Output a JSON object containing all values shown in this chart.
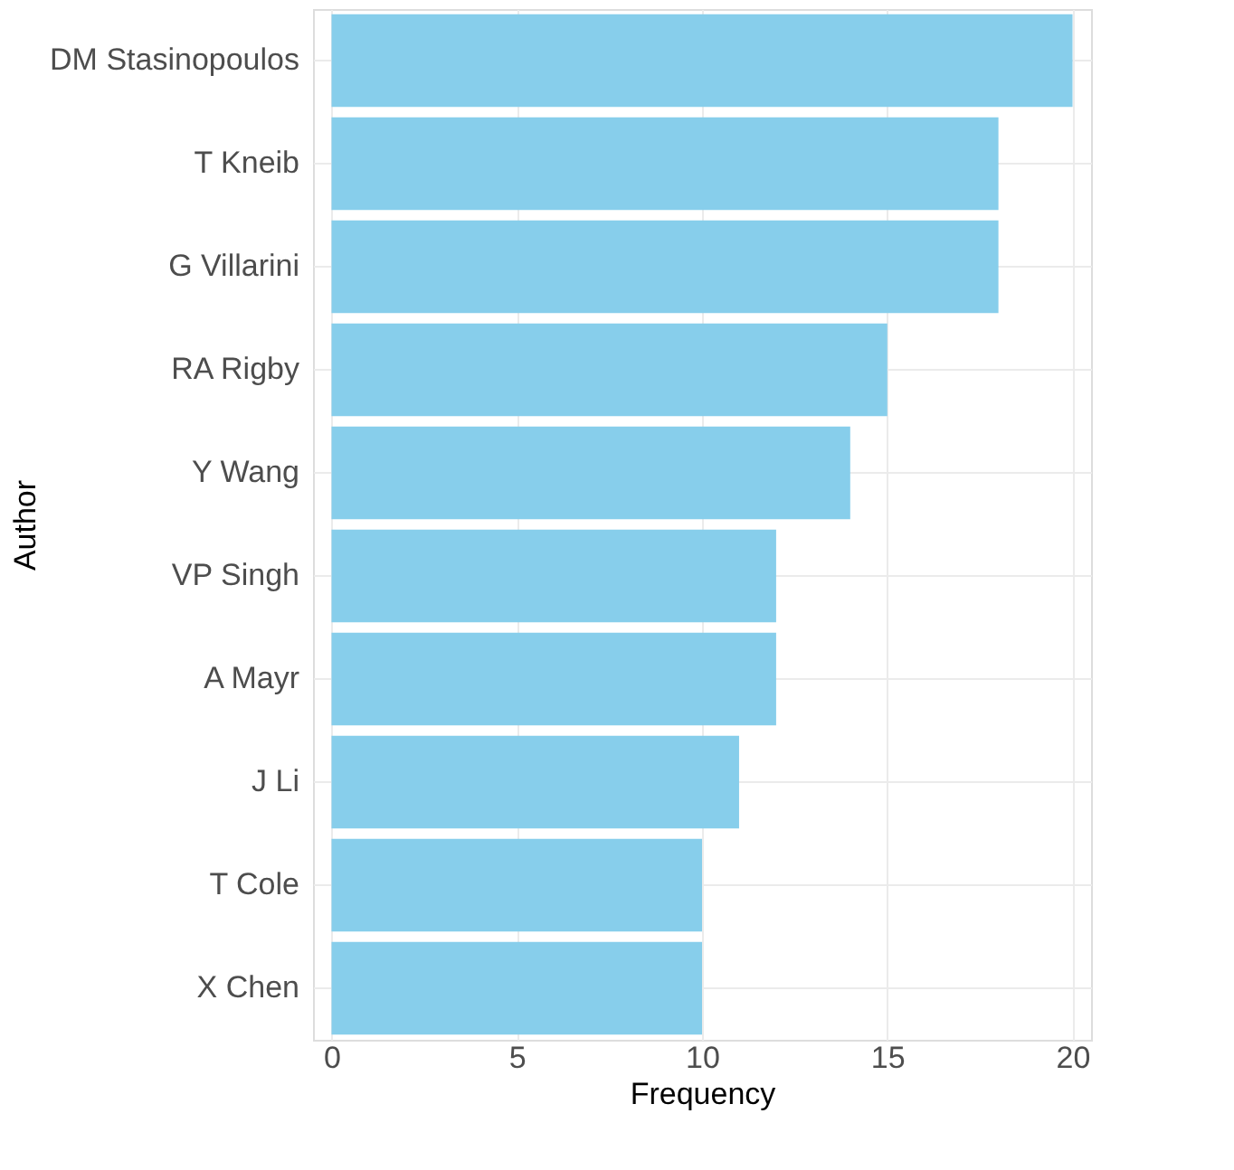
{
  "chart_data": {
    "type": "bar",
    "orientation": "horizontal",
    "xlabel": "Frequency",
    "ylabel": "Author",
    "categories": [
      "DM Stasinopoulos",
      "T Kneib",
      "G Villarini",
      "RA Rigby",
      "Y Wang",
      "VP Singh",
      "A Mayr",
      "J Li",
      "T Cole",
      "X Chen"
    ],
    "values": [
      20,
      18,
      18,
      15,
      14,
      12,
      12,
      11,
      10,
      10
    ],
    "color": "#87ceeb",
    "xlim": [
      -0.5,
      20.5
    ],
    "xticks": [
      0,
      5,
      10,
      15,
      20
    ],
    "grid": true
  }
}
